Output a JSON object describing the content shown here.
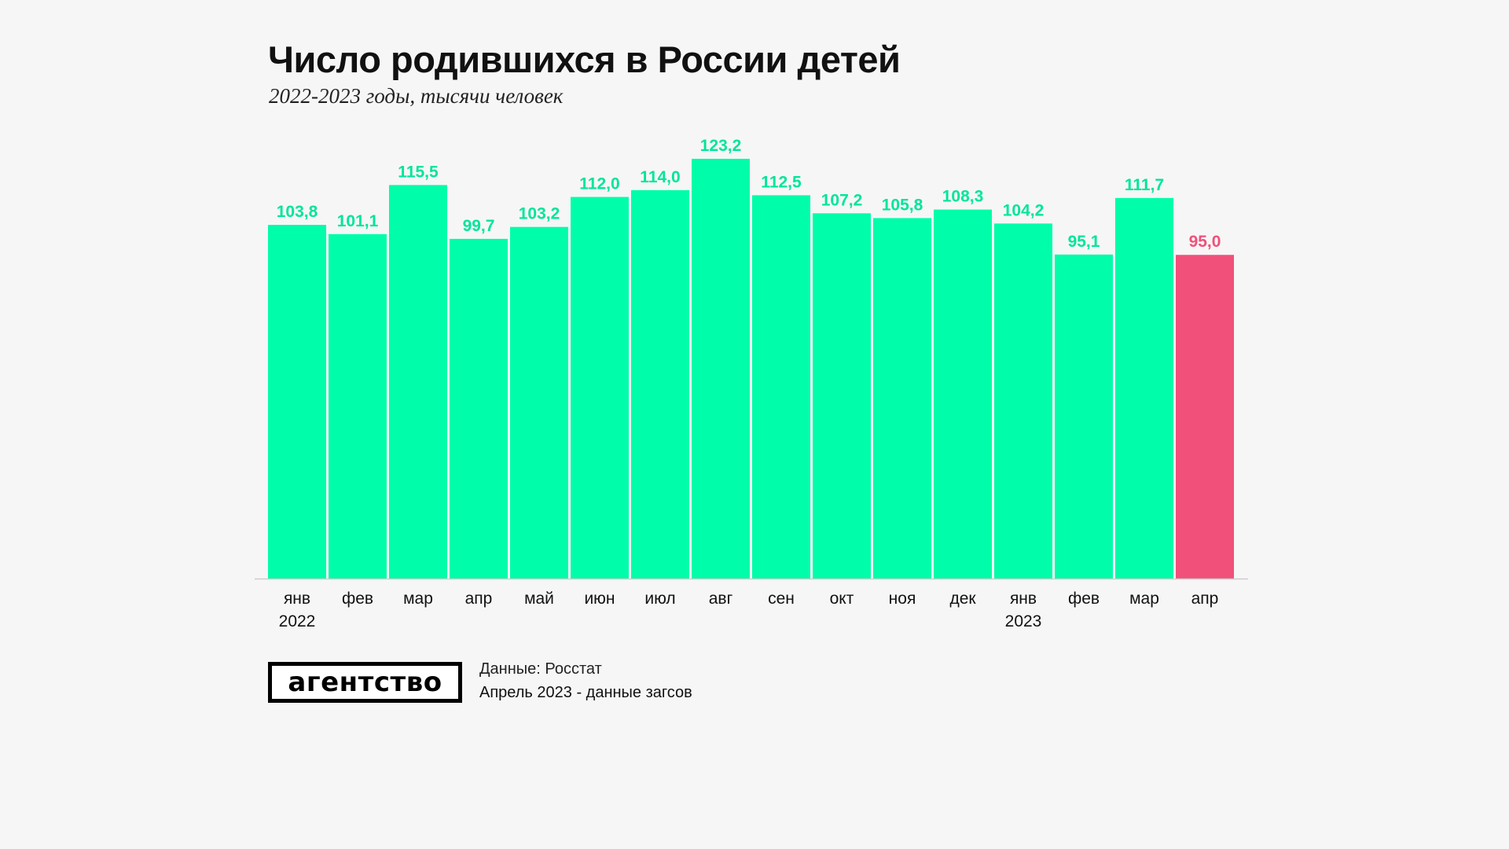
{
  "colors": {
    "bar": "#00fda9",
    "highlight": "#f0507a",
    "label": "#00e59a",
    "axis": "#cccccc",
    "text": "#111111"
  },
  "footer": {
    "logo": "агентство",
    "source": "Данные: Росстат",
    "note": "Апрель 2023 - данные загсов"
  },
  "chart_data": {
    "type": "bar",
    "title": "Число родившихся в России детей",
    "subtitle": "2022-2023 годы, тысячи человек",
    "xlabel": "",
    "ylabel": "",
    "ylim": [
      0,
      123.2
    ],
    "grid": false,
    "legend": "none",
    "categories": [
      "янв",
      "фев",
      "мар",
      "апр",
      "май",
      "июн",
      "июл",
      "авг",
      "сен",
      "окт",
      "ноя",
      "дек",
      "янв",
      "фев",
      "мар",
      "апр"
    ],
    "year_labels": [
      "2022",
      "",
      "",
      "",
      "",
      "",
      "",
      "",
      "",
      "",
      "",
      "",
      "2023",
      "",
      "",
      ""
    ],
    "values": [
      103.8,
      101.1,
      115.5,
      99.7,
      103.2,
      112.0,
      114.0,
      123.2,
      112.5,
      107.2,
      105.8,
      108.3,
      104.2,
      95.1,
      111.7,
      95.0
    ],
    "value_labels": [
      "103,8",
      "101,1",
      "115,5",
      "99,7",
      "103,2",
      "112,0",
      "114,0",
      "123,2",
      "112,5",
      "107,2",
      "105,8",
      "108,3",
      "104,2",
      "95,1",
      "111,7",
      "95,0"
    ],
    "highlight_index": 15
  }
}
